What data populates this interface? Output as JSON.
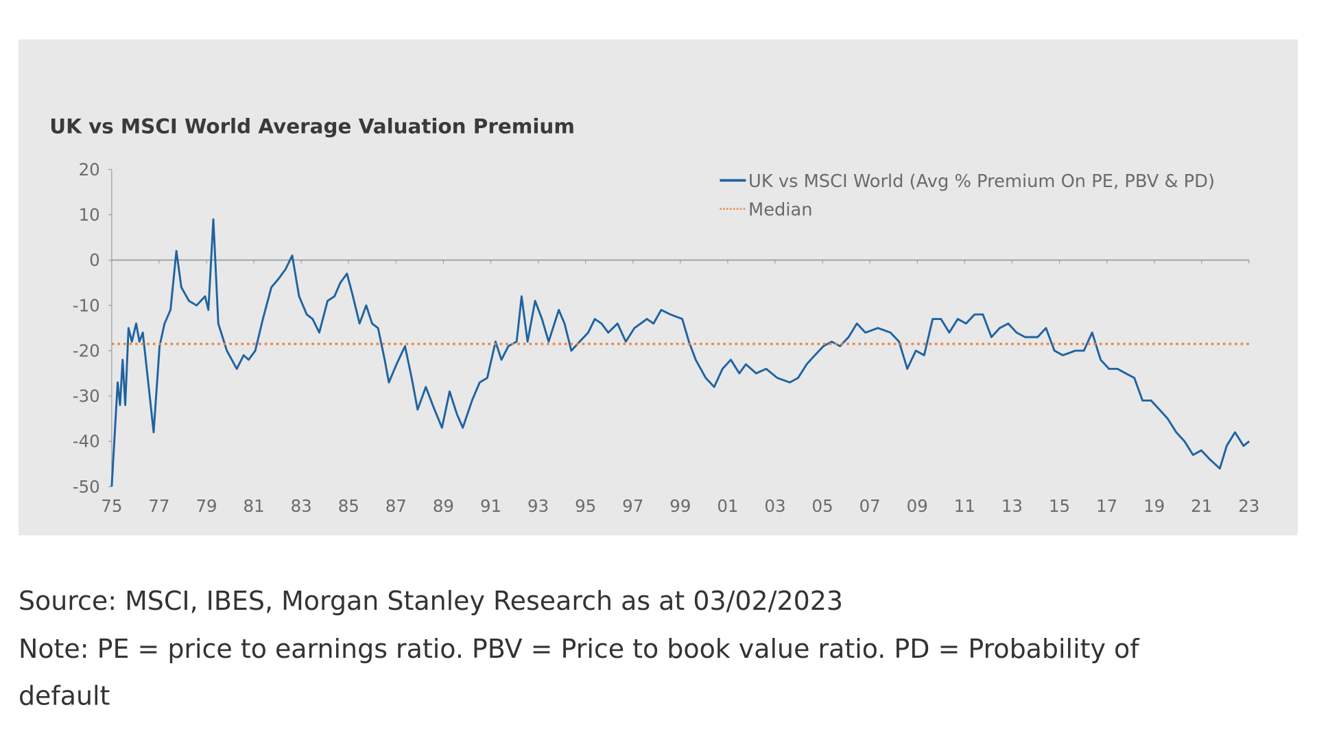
{
  "chart_data": {
    "type": "line",
    "title": "UK vs MSCI World Average Valuation Premium",
    "xlabel": "",
    "ylabel": "",
    "ylim": [
      -50,
      20
    ],
    "xlim": [
      1975,
      2023
    ],
    "yticks": [
      "20",
      "10",
      "0",
      "-10",
      "-20",
      "-30",
      "-40",
      "-50"
    ],
    "ytick_values": [
      20,
      10,
      0,
      -10,
      -20,
      -30,
      -40,
      -50
    ],
    "xticks": [
      "75",
      "77",
      "79",
      "81",
      "83",
      "85",
      "87",
      "89",
      "91",
      "93",
      "95",
      "97",
      "99",
      "01",
      "03",
      "05",
      "07",
      "09",
      "11",
      "13",
      "15",
      "17",
      "19",
      "21",
      "23"
    ],
    "xtick_values": [
      1975,
      1977,
      1979,
      1981,
      1983,
      1985,
      1987,
      1989,
      1991,
      1993,
      1995,
      1997,
      1999,
      2001,
      2003,
      2005,
      2007,
      2009,
      2011,
      2013,
      2015,
      2017,
      2019,
      2021,
      2023
    ],
    "grid": false,
    "legend_position": "top-right",
    "series": [
      {
        "name": "UK vs MSCI World (Avg % Premium On PE, PBV & PD)",
        "color": "#1f63a0",
        "style": "solid",
        "x": [
          1975.0,
          1975.25,
          1975.35,
          1975.46,
          1975.57,
          1975.71,
          1975.85,
          1976.03,
          1976.17,
          1976.31,
          1976.52,
          1976.77,
          1977.02,
          1977.23,
          1977.48,
          1977.73,
          1977.94,
          1978.26,
          1978.58,
          1978.94,
          1979.08,
          1979.29,
          1979.5,
          1979.68,
          1979.86,
          1980.28,
          1980.57,
          1980.78,
          1981.06,
          1981.38,
          1981.74,
          1982.06,
          1982.34,
          1982.62,
          1982.91,
          1983.23,
          1983.48,
          1983.76,
          1984.11,
          1984.4,
          1984.65,
          1984.93,
          1985.18,
          1985.46,
          1985.74,
          1985.99,
          1986.24,
          1986.52,
          1986.7,
          1987.02,
          1987.38,
          1987.66,
          1987.91,
          1988.26,
          1988.55,
          1988.94,
          1989.26,
          1989.57,
          1989.82,
          1990.21,
          1990.53,
          1990.85,
          1991.2,
          1991.45,
          1991.74,
          1992.09,
          1992.3,
          1992.55,
          1992.87,
          1993.16,
          1993.44,
          1993.87,
          1994.11,
          1994.4,
          1994.75,
          1995.11,
          1995.39,
          1995.67,
          1995.96,
          1996.35,
          1996.7,
          1997.06,
          1997.59,
          1997.87,
          1998.19,
          1998.58,
          1999.08,
          1999.36,
          1999.65,
          2000.07,
          2000.43,
          2000.78,
          2001.13,
          2001.49,
          2001.77,
          2002.2,
          2002.62,
          2003.09,
          2003.62,
          2003.97,
          2004.33,
          2004.68,
          2005.04,
          2005.39,
          2005.74,
          2006.1,
          2006.45,
          2006.81,
          2007.34,
          2007.87,
          2008.23,
          2008.58,
          2008.94,
          2009.29,
          2009.65,
          2010.0,
          2010.35,
          2010.71,
          2011.06,
          2011.42,
          2011.77,
          2012.13,
          2012.48,
          2012.84,
          2013.19,
          2013.55,
          2014.08,
          2014.43,
          2014.79,
          2015.14,
          2015.67,
          2016.03,
          2016.38,
          2016.74,
          2017.09,
          2017.45,
          2017.8,
          2018.16,
          2018.51,
          2018.87,
          2019.22,
          2019.57,
          2019.93,
          2020.28,
          2020.64,
          2020.99,
          2021.35,
          2021.77,
          2022.06,
          2022.41,
          2022.77,
          2023.01
        ],
        "y": [
          -50,
          -27,
          -32,
          -22,
          -32,
          -15,
          -18,
          -14,
          -18,
          -16,
          -26,
          -38,
          -19,
          -14,
          -11,
          2,
          -6,
          -9,
          -10,
          -8,
          -11,
          9,
          -14,
          -17,
          -20,
          -24,
          -21,
          -22,
          -20,
          -13,
          -6,
          -4,
          -2,
          1,
          -8,
          -12,
          -13,
          -16,
          -9,
          -8,
          -5,
          -3,
          -8,
          -14,
          -10,
          -14,
          -15,
          -22,
          -27,
          -23,
          -19,
          -26,
          -33,
          -28,
          -32,
          -37,
          -29,
          -34,
          -37,
          -31,
          -27,
          -26,
          -18,
          -22,
          -19,
          -18,
          -8,
          -18,
          -9,
          -13,
          -18,
          -11,
          -14,
          -20,
          -18,
          -16,
          -13,
          -14,
          -16,
          -14,
          -18,
          -15,
          -13,
          -14,
          -11,
          -12,
          -13,
          -18,
          -22,
          -26,
          -28,
          -24,
          -22,
          -25,
          -23,
          -25,
          -24,
          -26,
          -27,
          -26,
          -23,
          -21,
          -19,
          -18,
          -19,
          -17,
          -14,
          -16,
          -15,
          -16,
          -18,
          -24,
          -20,
          -21,
          -13,
          -13,
          -16,
          -13,
          -14,
          -12,
          -12,
          -17,
          -15,
          -14,
          -16,
          -17,
          -17,
          -15,
          -20,
          -21,
          -20,
          -20,
          -16,
          -22,
          -24,
          -24,
          -25,
          -26,
          -31,
          -31,
          -33,
          -35,
          -38,
          -40,
          -43,
          -42,
          -44,
          -46,
          -41,
          -38,
          -41,
          -40
        ]
      },
      {
        "name": "Median",
        "color": "#e8833a",
        "style": "dotted",
        "x": [
          1975,
          2023
        ],
        "y": [
          -18.5,
          -18.5
        ]
      }
    ]
  },
  "footer": {
    "source": "Source: MSCI, IBES, Morgan Stanley Research as at 03/02/2023",
    "note_line1": "Note: PE = price to earnings ratio. PBV = Price to book value ratio. PD = Probability of",
    "note_line2": "default"
  },
  "colors": {
    "panel": "#e8e8e9",
    "axis": "#9a9ea4"
  }
}
